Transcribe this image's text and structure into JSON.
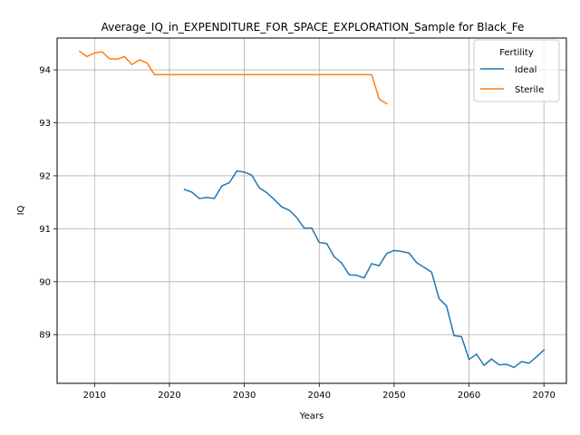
{
  "chart_data": {
    "type": "line",
    "title": "Average_IQ_in_EXPENDITURE_FOR_SPACE_EXPLORATION_Sample for Black_Fe",
    "xlabel": "Years",
    "ylabel": "IQ",
    "xlim": [
      2005,
      2073
    ],
    "ylim": [
      88.08,
      94.6
    ],
    "xticks": [
      2010,
      2020,
      2030,
      2040,
      2050,
      2060,
      2070
    ],
    "yticks": [
      89,
      90,
      91,
      92,
      93,
      94
    ],
    "grid": true,
    "legend": {
      "title": "Fertility",
      "placement": "top-right"
    },
    "series": [
      {
        "name": "Ideal",
        "color": "#1f77b4",
        "x": [
          2022,
          2023,
          2024,
          2025,
          2026,
          2027,
          2028,
          2029,
          2030,
          2031,
          2032,
          2033,
          2034,
          2035,
          2036,
          2037,
          2038,
          2039,
          2040,
          2041,
          2042,
          2043,
          2044,
          2045,
          2046,
          2047,
          2048,
          2049,
          2050,
          2051,
          2052,
          2053,
          2054,
          2055,
          2056,
          2057,
          2058,
          2059,
          2060,
          2061,
          2062,
          2063,
          2064,
          2065,
          2066,
          2067,
          2068,
          2069,
          2070
        ],
        "y": [
          91.74,
          91.69,
          91.57,
          91.59,
          91.57,
          91.81,
          91.87,
          92.09,
          92.07,
          92.01,
          91.77,
          91.68,
          91.55,
          91.41,
          91.35,
          91.21,
          91.01,
          91.01,
          90.74,
          90.72,
          90.47,
          90.35,
          90.13,
          90.12,
          90.07,
          90.34,
          90.3,
          90.53,
          90.59,
          90.57,
          90.54,
          90.36,
          90.27,
          90.18,
          89.68,
          89.54,
          88.98,
          88.96,
          88.53,
          88.63,
          88.42,
          88.54,
          88.43,
          88.44,
          88.38,
          88.49,
          88.46,
          88.58,
          88.71
        ]
      },
      {
        "name": "Sterile",
        "color": "#ff7f0e",
        "x": [
          2008,
          2009,
          2010,
          2011,
          2012,
          2013,
          2014,
          2015,
          2016,
          2017,
          2018,
          2019,
          2020,
          2021,
          2022,
          2023,
          2024,
          2025,
          2026,
          2027,
          2028,
          2029,
          2030,
          2031,
          2032,
          2033,
          2034,
          2035,
          2036,
          2037,
          2038,
          2039,
          2040,
          2041,
          2042,
          2043,
          2044,
          2045,
          2046,
          2047,
          2048,
          2049
        ],
        "y": [
          94.35,
          94.25,
          94.32,
          94.34,
          94.21,
          94.2,
          94.25,
          94.1,
          94.19,
          94.13,
          93.91,
          93.91,
          93.91,
          93.91,
          93.91,
          93.91,
          93.91,
          93.91,
          93.91,
          93.91,
          93.91,
          93.91,
          93.91,
          93.91,
          93.91,
          93.91,
          93.91,
          93.91,
          93.91,
          93.91,
          93.91,
          93.91,
          93.91,
          93.91,
          93.91,
          93.91,
          93.91,
          93.91,
          93.91,
          93.91,
          93.45,
          93.36
        ]
      }
    ]
  }
}
